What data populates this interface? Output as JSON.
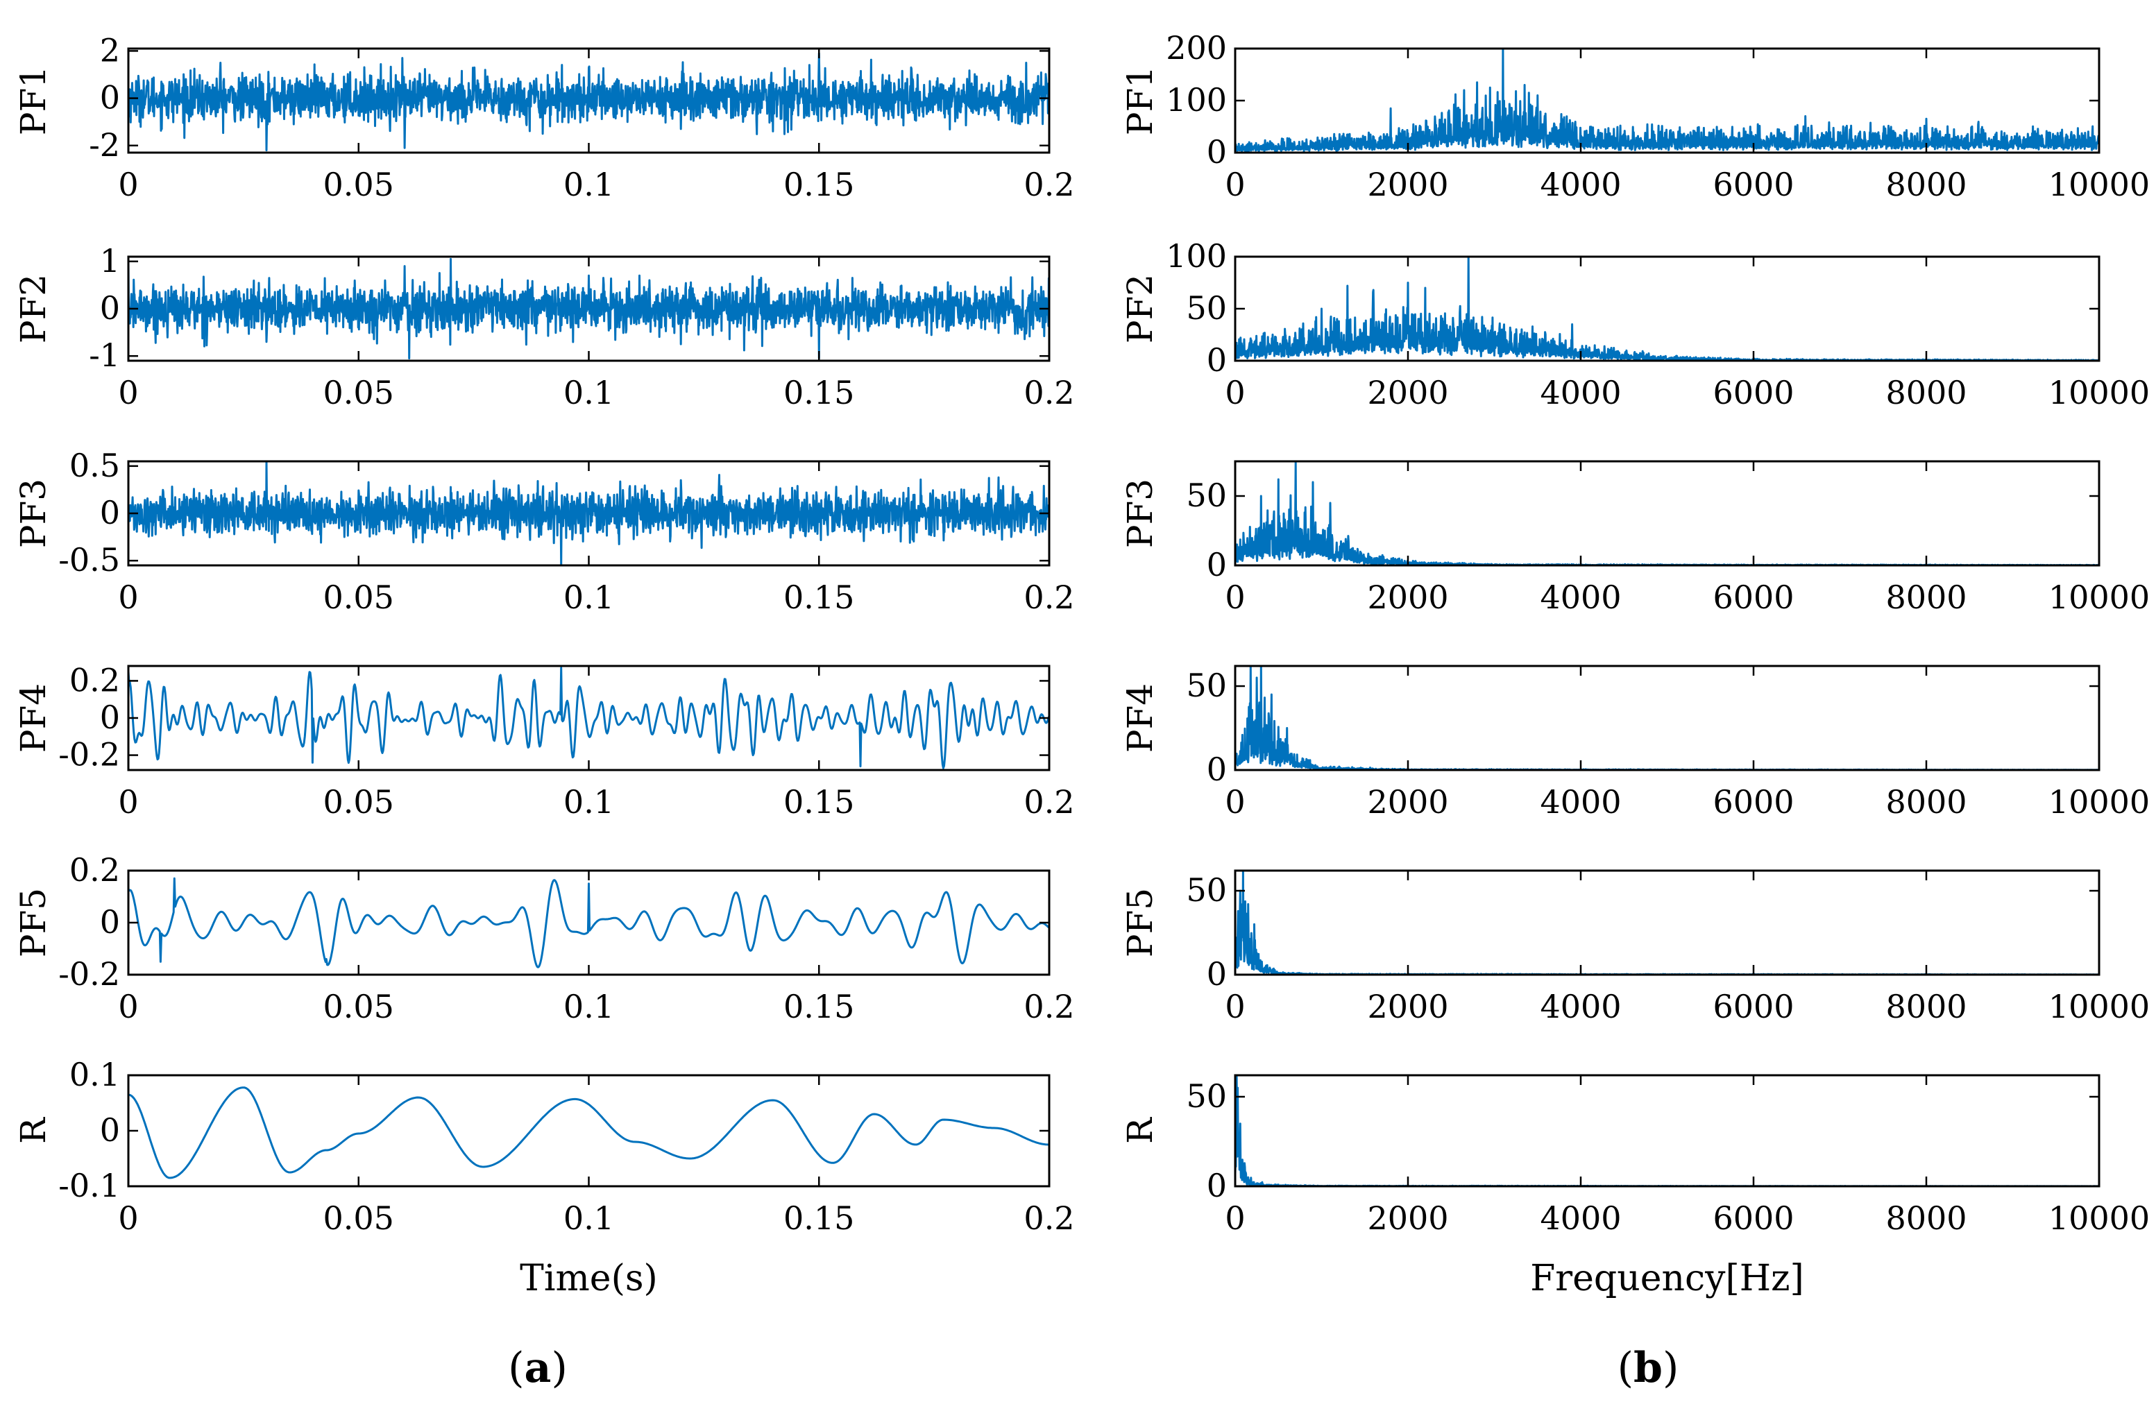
{
  "figure": {
    "panel_a_label": "a",
    "panel_b_label": "b",
    "colors": {
      "series": "#0072BD",
      "axis": "#000000"
    }
  },
  "chart_data": [
    {
      "id": "a-pf1",
      "type": "line",
      "title": "",
      "xlabel": "",
      "ylabel": "PF1",
      "xlim": [
        0,
        0.2
      ],
      "ylim": [
        -2.3,
        2.1
      ],
      "xticks": [
        "0",
        "0.05",
        "0.1",
        "0.15",
        "0.2"
      ],
      "xtick_values": [
        0,
        0.05,
        0.1,
        0.15,
        0.2
      ],
      "yticks": [
        "-2",
        "0",
        "2"
      ],
      "ytick_values": [
        -2,
        0,
        2
      ],
      "series": [
        {
          "name": "PF1",
          "kind": "noise",
          "amplitude": 0.6,
          "components": [],
          "spikes": [
            [
              0.03,
              -2.2
            ],
            [
              0.06,
              -2.1
            ],
            [
              0.0595,
              1.7
            ],
            [
              0.15,
              1.9
            ],
            [
              0.02,
              1.5
            ],
            [
              0.09,
              -1.5
            ],
            [
              0.14,
              -1.4
            ],
            [
              0.12,
              -1.3
            ],
            [
              0.1,
              1.3
            ],
            [
              0.17,
              1.3
            ],
            [
              0.195,
              1.5
            ]
          ]
        }
      ]
    },
    {
      "id": "a-pf2",
      "type": "line",
      "title": "",
      "xlabel": "",
      "ylabel": "PF2",
      "xlim": [
        0,
        0.2
      ],
      "ylim": [
        -1.1,
        1.1
      ],
      "xticks": [
        "0",
        "0.05",
        "0.1",
        "0.15",
        "0.2"
      ],
      "xtick_values": [
        0,
        0.05,
        0.1,
        0.15,
        0.2
      ],
      "yticks": [
        "-1",
        "0",
        "1"
      ],
      "ytick_values": [
        -1,
        0,
        1
      ],
      "series": [
        {
          "name": "PF2",
          "kind": "noise",
          "amplitude": 0.3,
          "components": [],
          "spikes": [
            [
              0.06,
              0.9
            ],
            [
              0.061,
              -1.05
            ],
            [
              0.07,
              1.05
            ],
            [
              0.15,
              -1.05
            ],
            [
              0.03,
              -0.7
            ],
            [
              0.12,
              -0.75
            ],
            [
              0.0,
              1.0
            ],
            [
              0.1,
              0.7
            ]
          ]
        }
      ]
    },
    {
      "id": "a-pf3",
      "type": "line",
      "title": "",
      "xlabel": "",
      "ylabel": "PF3",
      "xlim": [
        0,
        0.2
      ],
      "ylim": [
        -0.55,
        0.55
      ],
      "xticks": [
        "0",
        "0.05",
        "0.1",
        "0.15",
        "0.2"
      ],
      "xtick_values": [
        0,
        0.05,
        0.1,
        0.15,
        0.2
      ],
      "yticks": [
        "-0.5",
        "0",
        "0.5"
      ],
      "ytick_values": [
        -0.5,
        0,
        0.5
      ],
      "series": [
        {
          "name": "PF3",
          "kind": "noise",
          "amplitude": 0.12,
          "components": [
            [
              1500,
              0.08,
              0.3
            ],
            [
              1900,
              0.06,
              1.7
            ]
          ],
          "spikes": [
            [
              0.03,
              0.55
            ],
            [
              0.094,
              -0.55
            ],
            [
              0.093,
              0.32
            ],
            [
              0.189,
              0.38
            ],
            [
              0.12,
              0.35
            ]
          ]
        }
      ]
    },
    {
      "id": "a-pf4",
      "type": "line",
      "title": "",
      "xlabel": "",
      "ylabel": "PF4",
      "xlim": [
        0,
        0.2
      ],
      "ylim": [
        -0.28,
        0.28
      ],
      "xticks": [
        "0",
        "0.05",
        "0.1",
        "0.15",
        "0.2"
      ],
      "xtick_values": [
        0,
        0.05,
        0.1,
        0.15,
        0.2
      ],
      "yticks": [
        "-0.2",
        "0",
        "0.2"
      ],
      "ytick_values": [
        -0.2,
        0,
        0.2
      ],
      "series": [
        {
          "name": "PF4",
          "kind": "waves",
          "amplitude": 0.0,
          "components": [
            [
              287,
              0.09,
              0.0
            ],
            [
              409,
              0.06,
              1.2
            ],
            [
              223,
              0.05,
              2.1
            ],
            [
              535,
              0.035,
              0.7
            ],
            [
              171,
              0.03,
              2.9
            ]
          ],
          "spikes": [
            [
              0.094,
              0.27
            ],
            [
              0.04,
              -0.24
            ],
            [
              0.159,
              -0.26
            ],
            [
              0.0,
              0.25
            ]
          ]
        }
      ]
    },
    {
      "id": "a-pf5",
      "type": "line",
      "title": "",
      "xlabel": "",
      "ylabel": "PF5",
      "xlim": [
        0,
        0.2
      ],
      "ylim": [
        -0.2,
        0.2
      ],
      "xticks": [
        "0",
        "0.05",
        "0.1",
        "0.15",
        "0.2"
      ],
      "xtick_values": [
        0,
        0.05,
        0.1,
        0.15,
        0.2
      ],
      "yticks": [
        "-0.2",
        "0",
        "0.2"
      ],
      "ytick_values": [
        -0.2,
        0,
        0.2
      ],
      "series": [
        {
          "name": "PF5",
          "kind": "waves",
          "amplitude": 0.0,
          "components": [
            [
              109,
              0.06,
              0.4
            ],
            [
              151,
              0.045,
              1.9
            ],
            [
              73,
              0.035,
              2.7
            ],
            [
              197,
              0.025,
              0.9
            ]
          ],
          "spikes": [
            [
              0.01,
              0.17
            ],
            [
              0.1,
              0.15
            ],
            [
              0.007,
              -0.15
            ],
            [
              0.043,
              -0.14
            ]
          ]
        }
      ]
    },
    {
      "id": "a-r",
      "type": "line",
      "title": "",
      "xlabel": "Time(s)",
      "ylabel": "R",
      "xlim": [
        0,
        0.2
      ],
      "ylim": [
        -0.1,
        0.1
      ],
      "xticks": [
        "0",
        "0.05",
        "0.1",
        "0.15",
        "0.2"
      ],
      "xtick_values": [
        0,
        0.05,
        0.1,
        0.15,
        0.2
      ],
      "yticks": [
        "-0.1",
        "0",
        "0.1"
      ],
      "ytick_values": [
        -0.1,
        0,
        0.1
      ],
      "series": [
        {
          "name": "R",
          "kind": "points",
          "amplitude": 0.0,
          "components": [],
          "spikes": [],
          "x": [
            0,
            0.009,
            0.025,
            0.035,
            0.043,
            0.05,
            0.063,
            0.077,
            0.097,
            0.11,
            0.122,
            0.14,
            0.153,
            0.162,
            0.171,
            0.177,
            0.188,
            0.2
          ],
          "y": [
            0.065,
            -0.085,
            0.078,
            -0.075,
            -0.035,
            -0.005,
            0.06,
            -0.065,
            0.057,
            -0.02,
            -0.05,
            0.055,
            -0.058,
            0.03,
            -0.025,
            0.02,
            0.005,
            -0.025
          ]
        }
      ]
    },
    {
      "id": "b-pf1",
      "type": "line",
      "title": "",
      "xlabel": "",
      "ylabel": "PF1",
      "xlim": [
        0,
        10000
      ],
      "ylim": [
        0,
        200
      ],
      "xticks": [
        "0",
        "2000",
        "4000",
        "6000",
        "8000",
        "10000"
      ],
      "xtick_values": [
        0,
        2000,
        4000,
        6000,
        8000,
        10000
      ],
      "yticks": [
        "0",
        "100",
        "200"
      ],
      "ytick_values": [
        0,
        100,
        200
      ],
      "series": [
        {
          "name": "PF1 spectrum",
          "kind": "spectrum",
          "envelope_x": [
            0,
            1000,
            2000,
            2500,
            3100,
            3600,
            4000,
            6000,
            8000,
            10000
          ],
          "envelope_y": [
            12,
            20,
            30,
            55,
            70,
            55,
            32,
            30,
            33,
            28
          ],
          "peaks": [
            [
              3100,
              200
            ],
            [
              2800,
              135
            ],
            [
              2650,
              120
            ],
            [
              2950,
              125
            ],
            [
              3250,
              118
            ],
            [
              3400,
              115
            ],
            [
              3500,
              110
            ],
            [
              2550,
              112
            ],
            [
              3350,
              130
            ],
            [
              1800,
              85
            ],
            [
              6600,
              70
            ],
            [
              8000,
              65
            ]
          ]
        }
      ]
    },
    {
      "id": "b-pf2",
      "type": "line",
      "title": "",
      "xlabel": "",
      "ylabel": "PF2",
      "xlim": [
        0,
        10000
      ],
      "ylim": [
        0,
        100
      ],
      "xticks": [
        "0",
        "2000",
        "4000",
        "6000",
        "8000",
        "10000"
      ],
      "xtick_values": [
        0,
        2000,
        4000,
        6000,
        8000,
        10000
      ],
      "yticks": [
        "0",
        "50",
        "100"
      ],
      "ytick_values": [
        0,
        50,
        100
      ],
      "series": [
        {
          "name": "PF2 spectrum",
          "kind": "spectrum",
          "envelope_x": [
            0,
            1000,
            1700,
            2200,
            2800,
            3600,
            4200,
            5000,
            6000,
            10000
          ],
          "envelope_y": [
            12,
            25,
            35,
            33,
            28,
            18,
            9,
            3,
            1,
            0.5
          ],
          "peaks": [
            [
              2700,
              100
            ],
            [
              1300,
              72
            ],
            [
              2000,
              75
            ],
            [
              1600,
              68
            ],
            [
              2200,
              70
            ],
            [
              3900,
              35
            ],
            [
              1000,
              50
            ]
          ]
        }
      ]
    },
    {
      "id": "b-pf3",
      "type": "line",
      "title": "",
      "xlabel": "",
      "ylabel": "PF3",
      "xlim": [
        0,
        10000
      ],
      "ylim": [
        0,
        75
      ],
      "xticks": [
        "0",
        "2000",
        "4000",
        "6000",
        "8000",
        "10000"
      ],
      "xtick_values": [
        0,
        2000,
        4000,
        6000,
        8000,
        10000
      ],
      "yticks": [
        "0",
        "50"
      ],
      "ytick_values": [
        0,
        50
      ],
      "series": [
        {
          "name": "PF3 spectrum",
          "kind": "spectrum",
          "envelope_x": [
            0,
            300,
            700,
            1100,
            1500,
            2000,
            3000,
            10000
          ],
          "envelope_y": [
            12,
            22,
            30,
            18,
            6,
            2,
            0.5,
            0.2
          ],
          "peaks": [
            [
              700,
              75
            ],
            [
              500,
              62
            ],
            [
              900,
              60
            ],
            [
              300,
              50
            ],
            [
              1100,
              45
            ]
          ]
        }
      ]
    },
    {
      "id": "b-pf4",
      "type": "line",
      "title": "",
      "xlabel": "",
      "ylabel": "PF4",
      "xlim": [
        0,
        10000
      ],
      "ylim": [
        0,
        62
      ],
      "xticks": [
        "0",
        "2000",
        "4000",
        "6000",
        "8000",
        "10000"
      ],
      "xtick_values": [
        0,
        2000,
        4000,
        6000,
        8000,
        10000
      ],
      "yticks": [
        "0",
        "50"
      ],
      "ytick_values": [
        0,
        50
      ],
      "series": [
        {
          "name": "PF4 spectrum",
          "kind": "spectrum",
          "envelope_x": [
            0,
            150,
            300,
            450,
            700,
            1000,
            2000,
            10000
          ],
          "envelope_y": [
            8,
            24,
            26,
            18,
            6,
            1.5,
            0.3,
            0.1
          ],
          "peaks": [
            [
              180,
              62
            ],
            [
              300,
              62
            ],
            [
              250,
              55
            ],
            [
              420,
              45
            ],
            [
              600,
              25
            ]
          ]
        }
      ]
    },
    {
      "id": "b-pf5",
      "type": "line",
      "title": "",
      "xlabel": "",
      "ylabel": "PF5",
      "xlim": [
        0,
        10000
      ],
      "ylim": [
        0,
        62
      ],
      "xticks": [
        "0",
        "2000",
        "4000",
        "6000",
        "8000",
        "10000"
      ],
      "xtick_values": [
        0,
        2000,
        4000,
        6000,
        8000,
        10000
      ],
      "yticks": [
        "0",
        "50"
      ],
      "ytick_values": [
        0,
        50
      ],
      "series": [
        {
          "name": "PF5 spectrum",
          "kind": "spectrum",
          "envelope_x": [
            0,
            60,
            120,
            200,
            300,
            500,
            1000,
            10000
          ],
          "envelope_y": [
            10,
            32,
            30,
            16,
            5,
            1,
            0.3,
            0.1
          ],
          "peaks": [
            [
              90,
              62
            ],
            [
              60,
              50
            ],
            [
              150,
              42
            ],
            [
              220,
              30
            ]
          ]
        }
      ]
    },
    {
      "id": "b-r",
      "type": "line",
      "title": "",
      "xlabel": "Frequency[Hz]",
      "ylabel": "R",
      "xlim": [
        0,
        10000
      ],
      "ylim": [
        0,
        62
      ],
      "xticks": [
        "0",
        "2000",
        "4000",
        "6000",
        "8000",
        "10000"
      ],
      "xtick_values": [
        0,
        2000,
        4000,
        6000,
        8000,
        10000
      ],
      "yticks": [
        "0",
        "50"
      ],
      "ytick_values": [
        0,
        50
      ],
      "series": [
        {
          "name": "R spectrum",
          "kind": "spectrum",
          "envelope_x": [
            0,
            20,
            50,
            100,
            200,
            400,
            1000,
            10000
          ],
          "envelope_y": [
            30,
            40,
            22,
            8,
            2,
            0.6,
            0.2,
            0.05
          ],
          "peaks": [
            [
              15,
              62
            ],
            [
              30,
              55
            ],
            [
              60,
              35
            ]
          ]
        }
      ]
    }
  ]
}
